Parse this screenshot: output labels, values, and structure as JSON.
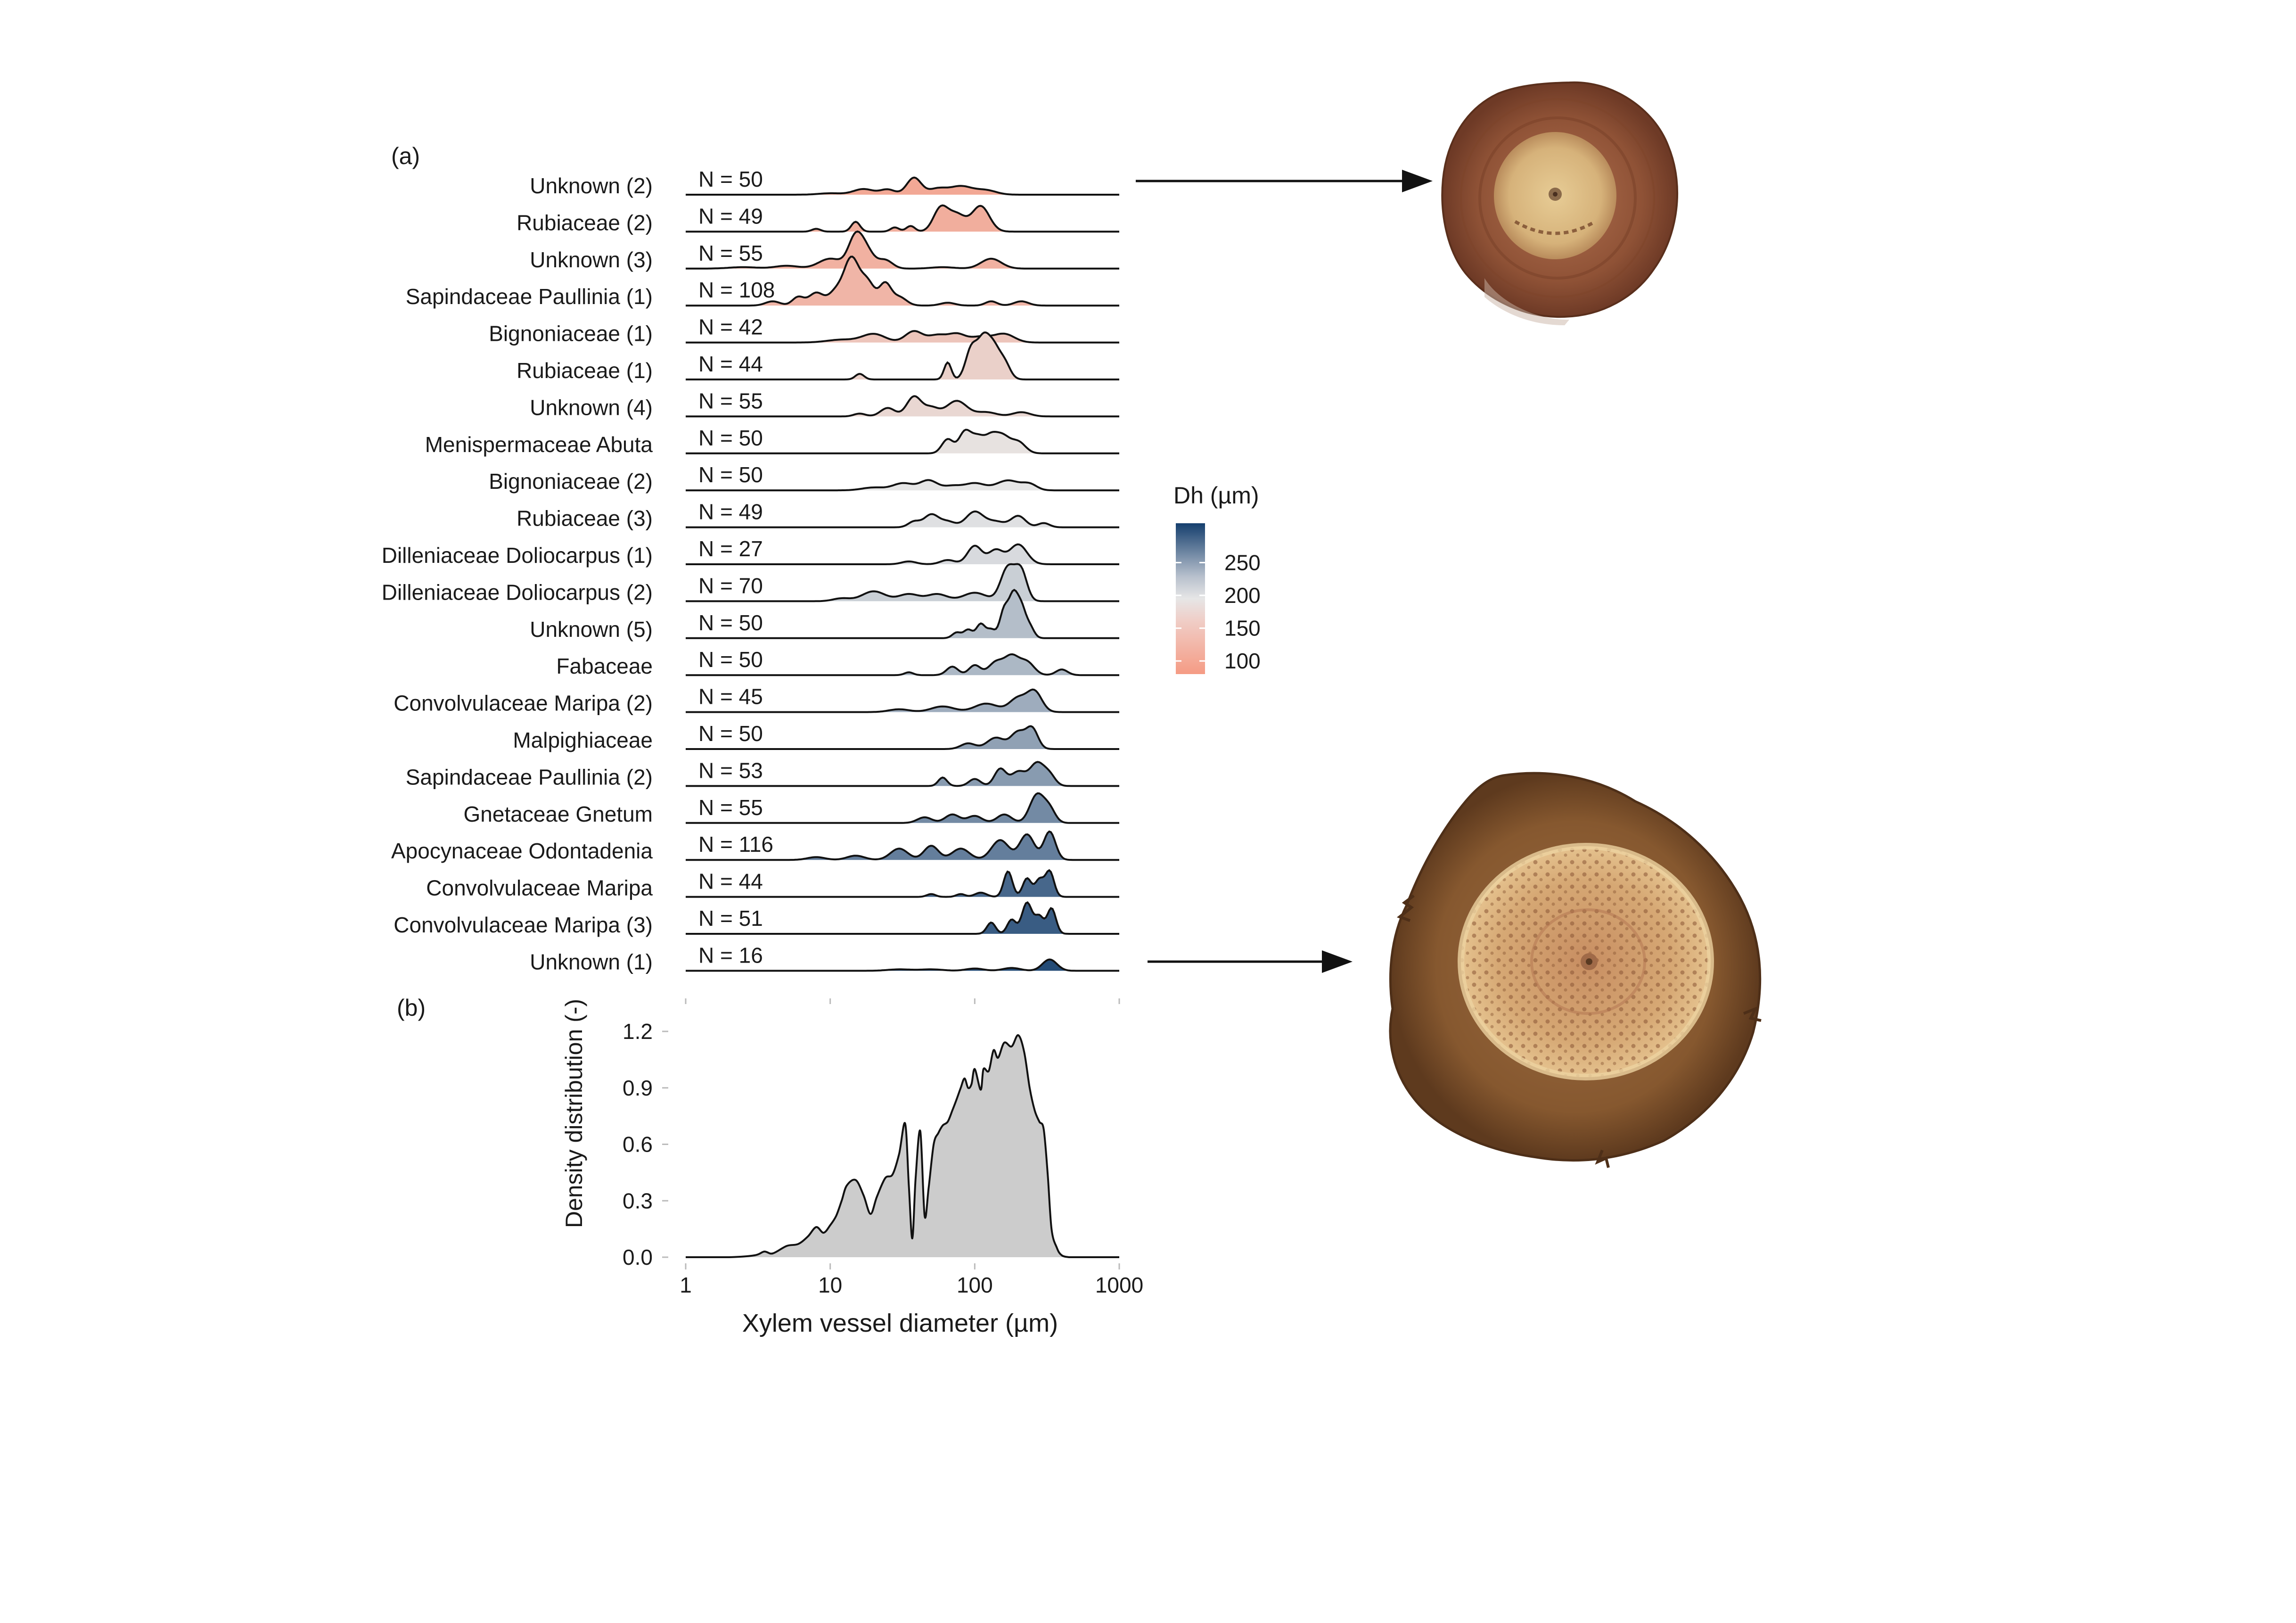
{
  "panels": {
    "a_label": "(a)",
    "b_label": "(b)"
  },
  "legend": {
    "title": "Dh (µm)",
    "ticks": [
      100,
      150,
      200,
      250
    ],
    "tick_labels": [
      "100",
      "150",
      "200",
      "250"
    ],
    "range": [
      80,
      310
    ],
    "colors": {
      "low": "#f59b84",
      "mid": "#e6e6e6",
      "high": "#153f6e"
    },
    "placement": "right of panel (a)"
  },
  "images": {
    "top": {
      "description_icon": "wood-cross-section-small-vessels",
      "tone": "#9c5a3c"
    },
    "bottom": {
      "description_icon": "wood-cross-section-large-vessels",
      "tone": "#8a5a36"
    }
  },
  "chart_data": [
    {
      "type": "ridgeline",
      "panel": "(a)",
      "x_scale": "log10",
      "xlim": [
        1,
        1000
      ],
      "rows": [
        {
          "label": "Unknown (2)",
          "n_label": "N = 50",
          "dh": 95,
          "peaks": [
            [
              10,
              0.05,
              0.08
            ],
            [
              17,
              0.2,
              0.07
            ],
            [
              25,
              0.18,
              0.05
            ],
            [
              38,
              0.6,
              0.05
            ],
            [
              55,
              0.2,
              0.06
            ],
            [
              80,
              0.3,
              0.08
            ],
            [
              120,
              0.15,
              0.07
            ]
          ]
        },
        {
          "label": "Rubiaceae (2)",
          "n_label": "N = 49",
          "dh": 102,
          "peaks": [
            [
              8,
              0.1,
              0.03
            ],
            [
              15,
              0.35,
              0.03
            ],
            [
              28,
              0.15,
              0.03
            ],
            [
              36,
              0.2,
              0.03
            ],
            [
              58,
              0.8,
              0.05
            ],
            [
              75,
              0.6,
              0.06
            ],
            [
              110,
              0.9,
              0.06
            ]
          ]
        },
        {
          "label": "Unknown (3)",
          "n_label": "N = 55",
          "dh": 105,
          "peaks": [
            [
              2.5,
              0.05,
              0.1
            ],
            [
              5,
              0.1,
              0.08
            ],
            [
              10,
              0.35,
              0.08
            ],
            [
              15,
              1.1,
              0.05
            ],
            [
              18,
              0.55,
              0.05
            ],
            [
              24,
              0.3,
              0.05
            ],
            [
              60,
              0.05,
              0.08
            ],
            [
              130,
              0.35,
              0.07
            ]
          ]
        },
        {
          "label": "Sapindaceae Paullinia (1)",
          "n_label": "N = 108",
          "dh": 110,
          "peaks": [
            [
              4,
              0.15,
              0.05
            ],
            [
              6,
              0.3,
              0.04
            ],
            [
              8,
              0.45,
              0.05
            ],
            [
              11,
              0.5,
              0.05
            ],
            [
              14,
              1.6,
              0.05
            ],
            [
              18,
              0.85,
              0.05
            ],
            [
              24,
              0.75,
              0.04
            ],
            [
              30,
              0.3,
              0.05
            ],
            [
              65,
              0.1,
              0.05
            ],
            [
              130,
              0.15,
              0.04
            ],
            [
              210,
              0.15,
              0.05
            ]
          ]
        },
        {
          "label": "Bignoniaceae (1)",
          "n_label": "N = 42",
          "dh": 128,
          "peaks": [
            [
              12,
              0.1,
              0.1
            ],
            [
              20,
              0.3,
              0.08
            ],
            [
              38,
              0.4,
              0.06
            ],
            [
              55,
              0.25,
              0.06
            ],
            [
              75,
              0.3,
              0.06
            ],
            [
              110,
              0.2,
              0.07
            ],
            [
              160,
              0.3,
              0.07
            ]
          ]
        },
        {
          "label": "Rubiaceae (1)",
          "n_label": "N = 44",
          "dh": 140,
          "peaks": [
            [
              16,
              0.2,
              0.03
            ],
            [
              65,
              0.6,
              0.025
            ],
            [
              95,
              1.1,
              0.04
            ],
            [
              115,
              1.3,
              0.04
            ],
            [
              135,
              1.0,
              0.04
            ],
            [
              160,
              0.6,
              0.04
            ]
          ]
        },
        {
          "label": "Unknown (4)",
          "n_label": "N = 55",
          "dh": 148,
          "peaks": [
            [
              16,
              0.1,
              0.04
            ],
            [
              25,
              0.3,
              0.05
            ],
            [
              38,
              0.7,
              0.05
            ],
            [
              50,
              0.3,
              0.05
            ],
            [
              75,
              0.55,
              0.07
            ],
            [
              120,
              0.15,
              0.07
            ],
            [
              210,
              0.15,
              0.06
            ]
          ]
        },
        {
          "label": "Menispermaceae Abuta",
          "n_label": "N = 50",
          "dh": 160,
          "peaks": [
            [
              65,
              0.5,
              0.04
            ],
            [
              85,
              0.7,
              0.04
            ],
            [
              105,
              0.6,
              0.05
            ],
            [
              130,
              0.45,
              0.04
            ],
            [
              155,
              0.6,
              0.05
            ],
            [
              200,
              0.4,
              0.05
            ]
          ]
        },
        {
          "label": "Bignoniaceae (2)",
          "n_label": "N = 50",
          "dh": 165,
          "peaks": [
            [
              20,
              0.1,
              0.08
            ],
            [
              32,
              0.25,
              0.07
            ],
            [
              48,
              0.35,
              0.06
            ],
            [
              70,
              0.15,
              0.06
            ],
            [
              100,
              0.25,
              0.07
            ],
            [
              170,
              0.35,
              0.08
            ],
            [
              240,
              0.2,
              0.05
            ]
          ]
        },
        {
          "label": "Rubiaceae (3)",
          "n_label": "N = 49",
          "dh": 170,
          "peaks": [
            [
              38,
              0.2,
              0.04
            ],
            [
              50,
              0.45,
              0.05
            ],
            [
              65,
              0.2,
              0.05
            ],
            [
              100,
              0.55,
              0.06
            ],
            [
              140,
              0.2,
              0.06
            ],
            [
              200,
              0.4,
              0.05
            ],
            [
              300,
              0.15,
              0.04
            ]
          ]
        },
        {
          "label": "Dilleniaceae Doliocarpus (1)",
          "n_label": "N = 27",
          "dh": 175,
          "peaks": [
            [
              35,
              0.1,
              0.05
            ],
            [
              65,
              0.15,
              0.05
            ],
            [
              100,
              0.65,
              0.05
            ],
            [
              140,
              0.5,
              0.05
            ],
            [
              200,
              0.7,
              0.06
            ]
          ]
        },
        {
          "label": "Dilleniaceae Doliocarpus (2)",
          "n_label": "N = 70",
          "dh": 185,
          "peaks": [
            [
              12,
              0.1,
              0.06
            ],
            [
              20,
              0.35,
              0.08
            ],
            [
              35,
              0.25,
              0.07
            ],
            [
              55,
              0.25,
              0.07
            ],
            [
              100,
              0.3,
              0.08
            ],
            [
              170,
              1.2,
              0.05
            ],
            [
              210,
              1.0,
              0.04
            ]
          ]
        },
        {
          "label": "Unknown (5)",
          "n_label": "N = 50",
          "dh": 200,
          "peaks": [
            [
              75,
              0.2,
              0.03
            ],
            [
              90,
              0.3,
              0.03
            ],
            [
              110,
              0.5,
              0.03
            ],
            [
              130,
              0.3,
              0.03
            ],
            [
              160,
              1.0,
              0.03
            ],
            [
              185,
              1.4,
              0.03
            ],
            [
              210,
              1.0,
              0.03
            ],
            [
              240,
              0.4,
              0.03
            ]
          ]
        },
        {
          "label": "Fabaceae",
          "n_label": "N = 50",
          "dh": 205,
          "peaks": [
            [
              35,
              0.1,
              0.03
            ],
            [
              70,
              0.3,
              0.04
            ],
            [
              100,
              0.35,
              0.04
            ],
            [
              140,
              0.45,
              0.05
            ],
            [
              180,
              0.65,
              0.05
            ],
            [
              230,
              0.45,
              0.05
            ],
            [
              400,
              0.2,
              0.04
            ]
          ]
        },
        {
          "label": "Convolvulaceae Maripa (2)",
          "n_label": "N = 45",
          "dh": 215,
          "peaks": [
            [
              30,
              0.1,
              0.07
            ],
            [
              60,
              0.2,
              0.08
            ],
            [
              120,
              0.3,
              0.08
            ],
            [
              200,
              0.5,
              0.06
            ],
            [
              260,
              0.7,
              0.05
            ]
          ]
        },
        {
          "label": "Malpighiaceae",
          "n_label": "N = 50",
          "dh": 225,
          "peaks": [
            [
              90,
              0.2,
              0.05
            ],
            [
              140,
              0.4,
              0.06
            ],
            [
              200,
              0.6,
              0.05
            ],
            [
              250,
              0.7,
              0.04
            ]
          ]
        },
        {
          "label": "Sapindaceae Paullinia (2)",
          "n_label": "N = 53",
          "dh": 230,
          "peaks": [
            [
              60,
              0.3,
              0.03
            ],
            [
              100,
              0.25,
              0.04
            ],
            [
              150,
              0.6,
              0.04
            ],
            [
              200,
              0.5,
              0.05
            ],
            [
              270,
              0.8,
              0.05
            ],
            [
              330,
              0.35,
              0.04
            ]
          ]
        },
        {
          "label": "Gnetaceae Gnetum",
          "n_label": "N = 55",
          "dh": 245,
          "peaks": [
            [
              45,
              0.2,
              0.05
            ],
            [
              70,
              0.3,
              0.05
            ],
            [
              100,
              0.25,
              0.05
            ],
            [
              160,
              0.3,
              0.05
            ],
            [
              270,
              1.0,
              0.05
            ],
            [
              330,
              0.45,
              0.04
            ]
          ]
        },
        {
          "label": "Apocynaceae Odontadenia",
          "n_label": "N = 116",
          "dh": 255,
          "peaks": [
            [
              8,
              0.1,
              0.06
            ],
            [
              15,
              0.15,
              0.06
            ],
            [
              30,
              0.4,
              0.06
            ],
            [
              50,
              0.5,
              0.05
            ],
            [
              80,
              0.4,
              0.06
            ],
            [
              150,
              0.7,
              0.06
            ],
            [
              230,
              0.9,
              0.05
            ],
            [
              330,
              1.0,
              0.04
            ]
          ]
        },
        {
          "label": "Convolvulaceae Maripa",
          "n_label": "N = 44",
          "dh": 275,
          "peaks": [
            [
              50,
              0.1,
              0.03
            ],
            [
              80,
              0.1,
              0.03
            ],
            [
              110,
              0.15,
              0.04
            ],
            [
              170,
              0.9,
              0.03
            ],
            [
              230,
              0.65,
              0.03
            ],
            [
              280,
              0.6,
              0.03
            ],
            [
              330,
              0.9,
              0.03
            ]
          ]
        },
        {
          "label": "Convolvulaceae Maripa (3)",
          "n_label": "N = 51",
          "dh": 285,
          "peaks": [
            [
              130,
              0.4,
              0.03
            ],
            [
              180,
              0.5,
              0.03
            ],
            [
              230,
              1.1,
              0.035
            ],
            [
              280,
              0.6,
              0.03
            ],
            [
              340,
              0.9,
              0.03
            ]
          ]
        },
        {
          "label": "Unknown (1)",
          "n_label": "N = 16",
          "dh": 300,
          "peaks": [
            [
              30,
              0.05,
              0.08
            ],
            [
              50,
              0.05,
              0.08
            ],
            [
              100,
              0.08,
              0.06
            ],
            [
              180,
              0.1,
              0.06
            ],
            [
              330,
              0.4,
              0.05
            ]
          ]
        }
      ]
    },
    {
      "type": "area",
      "panel": "(b)",
      "xlabel": "Xylem vessel diameter (µm)",
      "ylabel": "Density distribution (-)",
      "x_scale": "log10",
      "xlim": [
        1,
        1000
      ],
      "ylim": [
        0,
        1.2
      ],
      "x_ticks": [
        1,
        10,
        100,
        1000
      ],
      "x_tick_labels": [
        "1",
        "10",
        "100",
        "1000"
      ],
      "y_ticks": [
        0,
        0.3,
        0.6,
        0.9,
        1.2
      ],
      "y_tick_labels": [
        "0.0",
        "0.3",
        "0.6",
        "0.9",
        "1.2"
      ],
      "fill": "#cccccc",
      "x": [
        1,
        2,
        3,
        3.5,
        4,
        5,
        6,
        7,
        8,
        9,
        10,
        11,
        12,
        13,
        15,
        17,
        19,
        21,
        24,
        27,
        30,
        33,
        35,
        37,
        39,
        42,
        45,
        48,
        52,
        56,
        60,
        65,
        70,
        75,
        80,
        85,
        90,
        95,
        100,
        110,
        115,
        125,
        135,
        145,
        160,
        180,
        200,
        220,
        240,
        260,
        280,
        300,
        320,
        340,
        370,
        400,
        450,
        500,
        600,
        1000
      ],
      "y": [
        0,
        0,
        0.01,
        0.03,
        0.02,
        0.06,
        0.07,
        0.11,
        0.16,
        0.13,
        0.17,
        0.22,
        0.3,
        0.38,
        0.41,
        0.33,
        0.23,
        0.32,
        0.42,
        0.44,
        0.55,
        0.71,
        0.38,
        0.1,
        0.42,
        0.67,
        0.22,
        0.37,
        0.6,
        0.66,
        0.7,
        0.72,
        0.78,
        0.84,
        0.9,
        0.95,
        0.9,
        0.92,
        1.0,
        0.89,
        1.0,
        0.99,
        1.1,
        1.06,
        1.14,
        1.12,
        1.18,
        1.09,
        0.9,
        0.78,
        0.72,
        0.68,
        0.44,
        0.15,
        0.05,
        0.01,
        0,
        0,
        0,
        0
      ]
    }
  ]
}
